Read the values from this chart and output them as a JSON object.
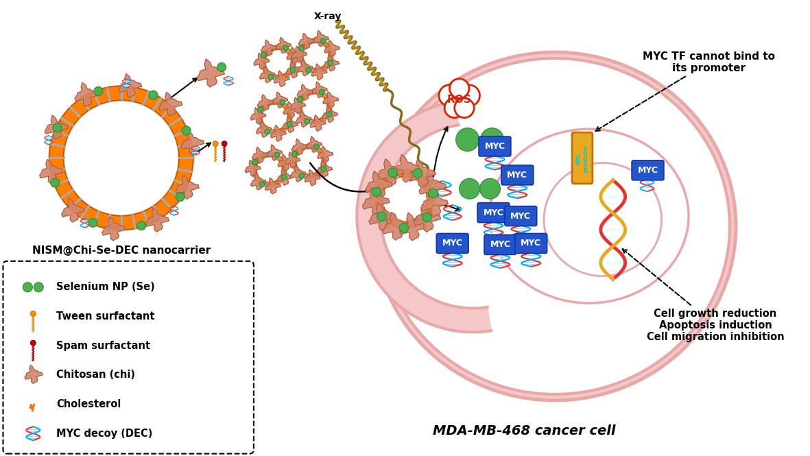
{
  "background_color": "#ffffff",
  "nanocarrier_label": "NISM@Chi-Se-DEC nanocarrier",
  "cell_label": "MDA-MB-468 cancer cell",
  "annotation1": "MYC TF cannot bind to\nits promoter",
  "annotation2": "Cell growth reduction\nApoptosis induction\nCell migration inhibition",
  "xray_label": "X-ray",
  "legend_items": [
    {
      "label": "Selenium NP (Se)",
      "color": "#4caf50"
    },
    {
      "label": "Tween surfactant",
      "color": "#ff8c00"
    },
    {
      "label": "Spam surfactant",
      "color": "#cc0000"
    },
    {
      "label": "Chitosan (chi)",
      "color": "#c87941"
    },
    {
      "label": "Cholesterol",
      "color": "#e87820"
    },
    {
      "label": "MYC decoy (DEC)",
      "color": "#3399ff"
    }
  ],
  "cell_outer_color": "#f5c8c8",
  "cell_stroke_color": "#e8a8a8",
  "se_green": "#4caf50",
  "se_green_dark": "#2d8a2d",
  "orange_ring": "#ff8000",
  "orange_ring_dark": "#cc5500",
  "gray_stripe": "#aaaaaa",
  "chitosan_color": "#d4846a",
  "chitosan_dark": "#a05030",
  "dna_red": "#e83030",
  "dna_blue": "#00aaff",
  "dna_gold": "#e8a820",
  "myc_box_color": "#2255cc",
  "myc_text_color": "#ffffff",
  "promoter_box_color": "#e8a820",
  "promoter_text_color": "#00cccc",
  "xray_color": "#8B6914",
  "ros_color": "#dd2200"
}
